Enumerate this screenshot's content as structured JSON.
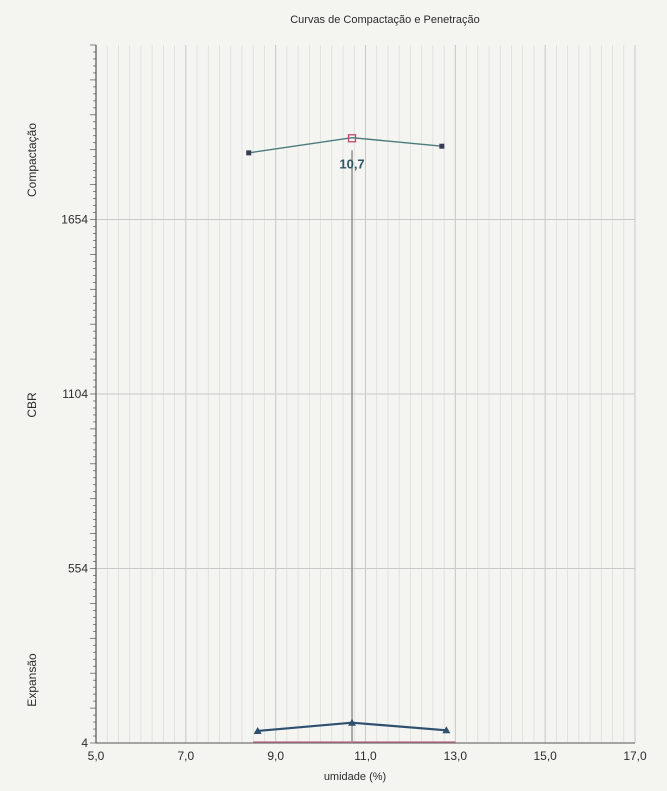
{
  "chart_data": {
    "type": "line",
    "title": "Curvas de Compactação e Penetração",
    "xlabel": "umidade (%)",
    "ylabel": "",
    "xlim": [
      5.0,
      17.0
    ],
    "ylim": [
      4,
      2204
    ],
    "x_ticks": [
      "5,0",
      "7,0",
      "9,0",
      "11,0",
      "13,0",
      "15,0",
      "17,0"
    ],
    "x_tick_values": [
      5,
      7,
      9,
      11,
      13,
      15,
      17
    ],
    "y_ticks": [
      "4",
      "554",
      "1104",
      "1654"
    ],
    "y_tick_values": [
      4,
      554,
      1104,
      1654
    ],
    "section_labels": [
      "Expansão",
      "CBR",
      "Compactação"
    ],
    "grid": true,
    "optimum_label": "10,7",
    "optimum_x": 10.7,
    "series": [
      {
        "x": [
          8.4,
          10.7,
          12.7
        ],
        "y": [
          1864,
          1912,
          1885
        ],
        "color": "#4a7a7a",
        "marker_color": "#3a3a55"
      },
      {
        "x": [
          8.6,
          10.7,
          12.8
        ],
        "y": [
          42,
          68,
          44
        ],
        "color": "#2f4f6f",
        "marker_color": "#2f4f6f"
      }
    ],
    "optimum_marker": {
      "x": 10.7,
      "y": 1910,
      "color": "#c0476a"
    },
    "colors": {
      "grid_major": "#c9c9c9",
      "grid_minor": "#dddddd",
      "axis": "#555555",
      "vertical_line": "#8a8a8a",
      "baseline_accent": "#c06a8a"
    }
  }
}
